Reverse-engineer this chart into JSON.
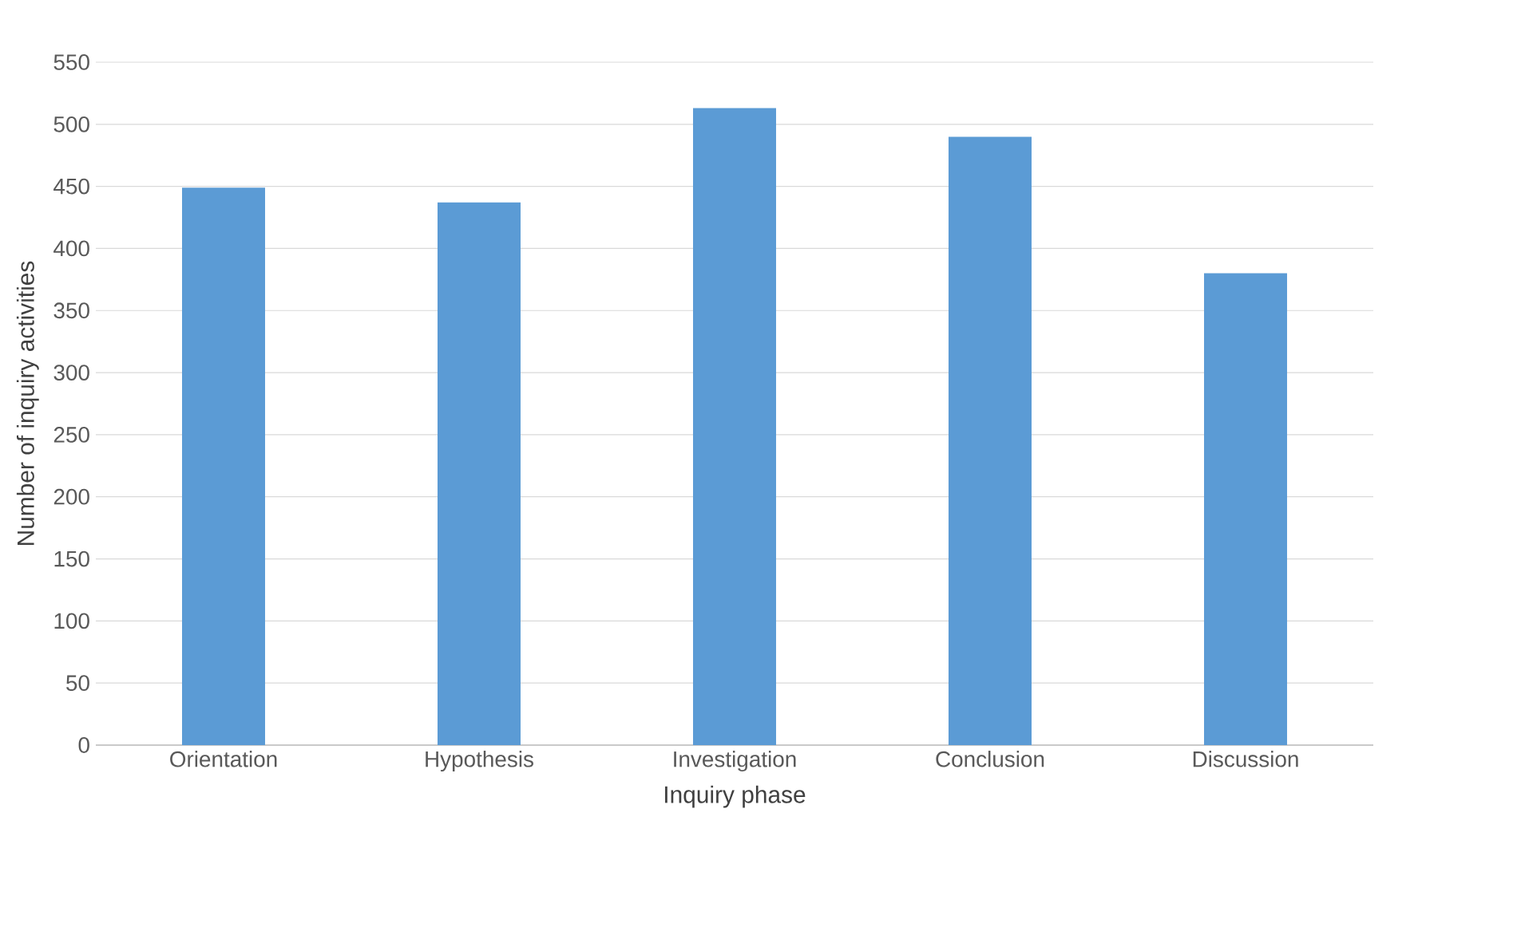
{
  "chart_data": {
    "type": "bar",
    "xlabel": "Inquiry phase",
    "ylabel": "Number of inquiry activities",
    "categories": [
      "Orientation",
      "Hypothesis",
      "Investigation",
      "Conclusion",
      "Discussion"
    ],
    "values": [
      449,
      437,
      513,
      490,
      380
    ],
    "color": "#5b9bd5",
    "ylim": [
      0,
      550
    ],
    "yticks": [
      0,
      50,
      100,
      150,
      200,
      250,
      300,
      350,
      400,
      450,
      500,
      550
    ],
    "grid": "y"
  }
}
